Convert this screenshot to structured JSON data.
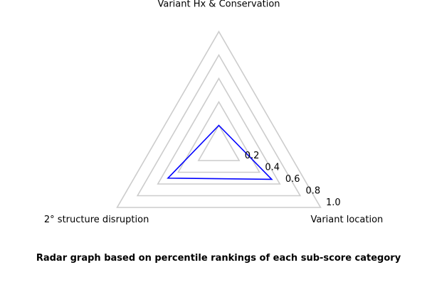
{
  "caption": "Radar graph based on percentile rankings of each sub-score category",
  "chart_data": {
    "type": "radar",
    "title": "",
    "categories": [
      "Variant Hx & Conservation",
      "Variant location",
      "2° structure disruption"
    ],
    "rlim": [
      0,
      1.0
    ],
    "ticks": [
      0.2,
      0.4,
      0.6,
      0.8,
      1.0
    ],
    "tick_labels": [
      "0.2",
      "0.4",
      "0.6",
      "0.8",
      "1.0"
    ],
    "series": [
      {
        "values": [
          0.2,
          0.52,
          0.5
        ],
        "color": "#0000ff"
      }
    ],
    "grid_color": "#cccccc",
    "grid": true,
    "legend": "none"
  }
}
